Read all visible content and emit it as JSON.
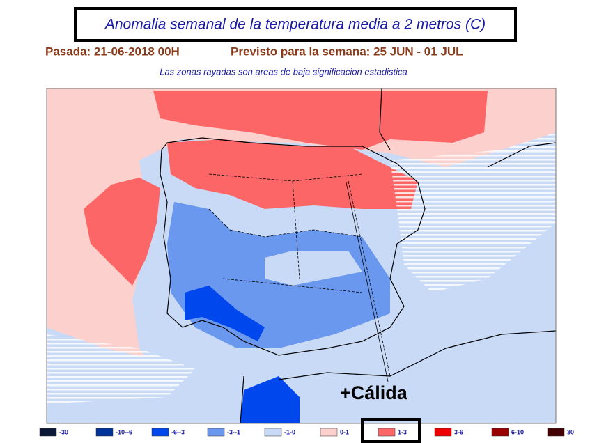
{
  "header": {
    "title": "Anomalia semanal de la temperatura media a 2 metros (C)",
    "run": "Pasada: 21-06-2018 00H",
    "forecast": "Previsto para la semana:  25 JUN - 01 JUL",
    "note": "Las zonas rayadas son areas de baja significacion estadistica"
  },
  "map": {
    "annotation": "+Cálida"
  },
  "legend": {
    "items": [
      {
        "label": "-30",
        "color": "#0b1838"
      },
      {
        "label": "-10--6",
        "color": "#003399"
      },
      {
        "label": "-6--3",
        "color": "#0047ee"
      },
      {
        "label": "-3--1",
        "color": "#6a98ee"
      },
      {
        "label": "-1-0",
        "color": "#c9daf6"
      },
      {
        "label": "0-1",
        "color": "#fcd0cc"
      },
      {
        "label": "1-3",
        "color": "#fd6666"
      },
      {
        "label": "3-6",
        "color": "#ee0000"
      },
      {
        "label": "6-10",
        "color": "#990000"
      },
      {
        "label": "30",
        "color": "#440000"
      }
    ]
  }
}
